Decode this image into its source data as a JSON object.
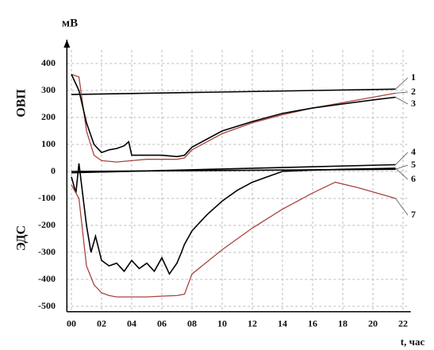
{
  "chart_data": {
    "type": "line",
    "y_label": "мВ",
    "x_label": "t, час",
    "upper_label": "ОВП",
    "lower_label": "ЭДС",
    "xlim": [
      -0.3,
      22.3
    ],
    "ylim": [
      -520,
      450
    ],
    "xticks": [
      {
        "value": 0,
        "label": "00"
      },
      {
        "value": 2,
        "label": "02"
      },
      {
        "value": 4,
        "label": "04"
      },
      {
        "value": 6,
        "label": "06"
      },
      {
        "value": 8,
        "label": "08"
      },
      10,
      12,
      14,
      16,
      18,
      20,
      22
    ],
    "yticks": [
      400,
      300,
      200,
      100,
      0,
      -100,
      -200,
      -300,
      -400,
      -500
    ],
    "grid": true,
    "series": [
      {
        "name": "1",
        "color": "#000000",
        "x": [
          0,
          21.5
        ],
        "values": [
          285,
          305
        ]
      },
      {
        "name": "2",
        "color": "#a8443c",
        "x": [
          0,
          0.5,
          1,
          1.5,
          2,
          3,
          4,
          5,
          6,
          7,
          7.5,
          8,
          10,
          12,
          14,
          16,
          18,
          20,
          21.5
        ],
        "values": [
          360,
          350,
          150,
          60,
          40,
          35,
          40,
          45,
          45,
          45,
          50,
          80,
          140,
          180,
          210,
          235,
          255,
          275,
          290
        ]
      },
      {
        "name": "3",
        "color": "#000000",
        "x": [
          0,
          0.5,
          1,
          1.5,
          2,
          2.5,
          3,
          3.5,
          3.8,
          4,
          5,
          6,
          7,
          7.5,
          8,
          10,
          12,
          14,
          16,
          18,
          20,
          21.5
        ],
        "values": [
          360,
          300,
          180,
          100,
          70,
          80,
          85,
          95,
          110,
          60,
          60,
          60,
          55,
          60,
          90,
          150,
          185,
          215,
          235,
          250,
          265,
          275
        ]
      },
      {
        "name": "4",
        "color": "#000000",
        "x": [
          0,
          21.5
        ],
        "values": [
          -5,
          25
        ]
      },
      {
        "name": "5",
        "color": "#000000",
        "x": [
          0,
          21.5
        ],
        "values": [
          0,
          8
        ]
      },
      {
        "name": "6",
        "color": "#000000",
        "x": [
          0,
          0.3,
          0.5,
          1,
          1.3,
          1.6,
          2,
          2.5,
          3,
          3.5,
          4,
          4.5,
          5,
          5.5,
          6,
          6.5,
          7,
          7.3,
          7.5,
          8,
          9,
          10,
          11,
          12,
          13,
          14,
          16,
          18,
          20,
          21.5
        ],
        "values": [
          -20,
          -80,
          30,
          -200,
          -300,
          -240,
          -330,
          -350,
          -340,
          -370,
          -330,
          -360,
          -340,
          -370,
          -320,
          -380,
          -340,
          -300,
          -270,
          -220,
          -160,
          -110,
          -70,
          -40,
          -20,
          0,
          5,
          8,
          10,
          12
        ]
      },
      {
        "name": "7",
        "color": "#a8443c",
        "x": [
          0,
          0.5,
          1,
          1.5,
          2,
          2.5,
          3,
          4,
          5,
          6,
          7,
          7.5,
          8,
          10,
          12,
          14,
          16,
          17.5,
          19,
          21.5
        ],
        "values": [
          -50,
          -100,
          -350,
          -420,
          -450,
          -460,
          -465,
          -465,
          -465,
          -462,
          -460,
          -455,
          -380,
          -290,
          -210,
          -140,
          -80,
          -40,
          -60,
          -100
        ]
      }
    ]
  }
}
